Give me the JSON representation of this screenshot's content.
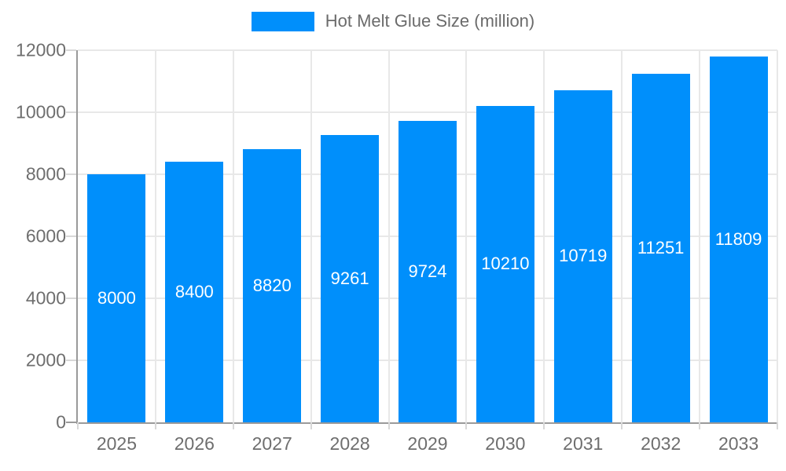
{
  "legend": {
    "label": "Hot Melt Glue Size (million)"
  },
  "chart_data": {
    "type": "bar",
    "title": "",
    "xlabel": "",
    "ylabel": "",
    "categories": [
      "2025",
      "2026",
      "2027",
      "2028",
      "2029",
      "2030",
      "2031",
      "2032",
      "2033"
    ],
    "series": [
      {
        "name": "Hot Melt Glue Size (million)",
        "values": [
          8000,
          8400,
          8820,
          9261,
          9724,
          10210,
          10719,
          11251,
          11809
        ]
      }
    ],
    "bar_value_labels": [
      "8000",
      "8400",
      "8820",
      "9261",
      "9724",
      "10210",
      "10719",
      "11251",
      "11809"
    ],
    "ylim": [
      0,
      12000
    ],
    "ytick_step": 2000,
    "ytick_labels": [
      "0",
      "2000",
      "4000",
      "6000",
      "8000",
      "10000",
      "12000"
    ],
    "grid": true,
    "legend_position": "top"
  },
  "colors": {
    "bar": "#008FFB",
    "bar_label": "#ffffff",
    "axis_line": "#9a9a9a",
    "gridline": "#e8e8e8",
    "tick": "#d8d8d8",
    "axis_text": "#6e6e6e",
    "legend_text": "#6b6b6b"
  }
}
